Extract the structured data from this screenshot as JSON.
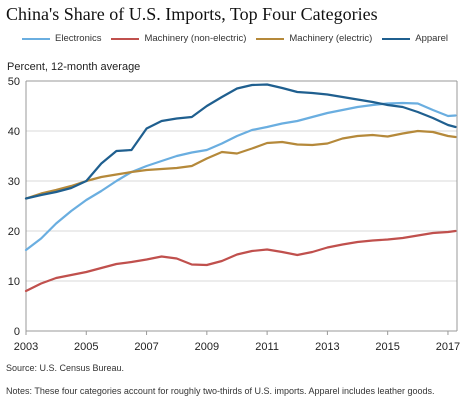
{
  "chart_data": {
    "type": "line",
    "title": "China's Share of U.S. Imports, Top Four Categories",
    "ylabel": "Percent, 12-month average",
    "xlabel": "",
    "xlim": [
      2003,
      2017.3
    ],
    "ylim": [
      0,
      50
    ],
    "xticks": [
      "2003",
      "2005",
      "2007",
      "2009",
      "2011",
      "2013",
      "2015",
      "2017"
    ],
    "yticks": [
      "0",
      "10",
      "20",
      "30",
      "40",
      "50"
    ],
    "grid": "horizontal",
    "legend_position": "top",
    "series": [
      {
        "name": "Electronics",
        "color": "#6aaee0",
        "x": [
          2003.0,
          2003.5,
          2004.0,
          2004.5,
          2005.0,
          2005.5,
          2006.0,
          2006.5,
          2007.0,
          2007.5,
          2008.0,
          2008.5,
          2009.0,
          2009.5,
          2010.0,
          2010.5,
          2011.0,
          2011.5,
          2012.0,
          2012.5,
          2013.0,
          2013.5,
          2014.0,
          2014.5,
          2015.0,
          2015.5,
          2016.0,
          2016.5,
          2017.0,
          2017.25
        ],
        "values": [
          16.2,
          18.5,
          21.5,
          24.0,
          26.2,
          28.0,
          30.0,
          31.8,
          33.0,
          34.0,
          35.0,
          35.7,
          36.2,
          37.5,
          39.0,
          40.2,
          40.8,
          41.5,
          42.0,
          42.8,
          43.6,
          44.2,
          44.8,
          45.2,
          45.5,
          45.6,
          45.5,
          44.2,
          43.0,
          43.1
        ]
      },
      {
        "name": "Machinery (non-electric)",
        "color": "#c0504d",
        "x": [
          2003.0,
          2003.5,
          2004.0,
          2004.5,
          2005.0,
          2005.5,
          2006.0,
          2006.5,
          2007.0,
          2007.5,
          2008.0,
          2008.5,
          2009.0,
          2009.5,
          2010.0,
          2010.5,
          2011.0,
          2011.5,
          2012.0,
          2012.5,
          2013.0,
          2013.5,
          2014.0,
          2014.5,
          2015.0,
          2015.5,
          2016.0,
          2016.5,
          2017.0,
          2017.25
        ],
        "values": [
          8.0,
          9.5,
          10.6,
          11.2,
          11.8,
          12.6,
          13.4,
          13.8,
          14.3,
          14.9,
          14.5,
          13.3,
          13.2,
          14.0,
          15.3,
          16.0,
          16.3,
          15.8,
          15.2,
          15.8,
          16.7,
          17.3,
          17.8,
          18.1,
          18.3,
          18.6,
          19.1,
          19.6,
          19.8,
          20.0
        ]
      },
      {
        "name": "Machinery (electric)",
        "color": "#b5893a",
        "x": [
          2003.0,
          2003.5,
          2004.0,
          2004.5,
          2005.0,
          2005.5,
          2006.0,
          2006.5,
          2007.0,
          2007.5,
          2008.0,
          2008.5,
          2009.0,
          2009.5,
          2010.0,
          2010.5,
          2011.0,
          2011.5,
          2012.0,
          2012.5,
          2013.0,
          2013.5,
          2014.0,
          2014.5,
          2015.0,
          2015.5,
          2016.0,
          2016.5,
          2017.0,
          2017.25
        ],
        "values": [
          26.5,
          27.5,
          28.2,
          29.0,
          30.0,
          30.8,
          31.3,
          31.8,
          32.2,
          32.4,
          32.6,
          33.0,
          34.5,
          35.8,
          35.5,
          36.5,
          37.6,
          37.8,
          37.3,
          37.2,
          37.5,
          38.5,
          39.0,
          39.2,
          38.9,
          39.5,
          40.0,
          39.8,
          39.0,
          38.8
        ]
      },
      {
        "name": "Apparel",
        "color": "#1f5f8f",
        "x": [
          2003.0,
          2003.5,
          2004.0,
          2004.5,
          2005.0,
          2005.5,
          2006.0,
          2006.5,
          2007.0,
          2007.5,
          2008.0,
          2008.5,
          2009.0,
          2009.5,
          2010.0,
          2010.5,
          2011.0,
          2011.5,
          2012.0,
          2012.5,
          2013.0,
          2013.5,
          2014.0,
          2014.5,
          2015.0,
          2015.5,
          2016.0,
          2016.5,
          2017.0,
          2017.25
        ],
        "values": [
          26.5,
          27.2,
          27.8,
          28.6,
          30.0,
          33.5,
          36.0,
          36.2,
          40.5,
          42.0,
          42.5,
          42.8,
          45.0,
          46.8,
          48.5,
          49.2,
          49.3,
          48.6,
          47.8,
          47.6,
          47.3,
          46.8,
          46.3,
          45.8,
          45.2,
          44.8,
          43.8,
          42.6,
          41.2,
          40.8
        ]
      }
    ],
    "source": "Source: U.S. Census Bureau.",
    "notes": "Notes: These four categories account for roughly two-thirds of U.S. imports. Apparel includes leather goods."
  }
}
